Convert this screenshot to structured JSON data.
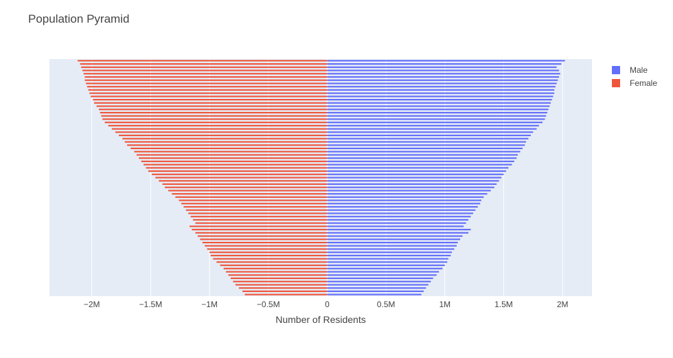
{
  "chart_data": {
    "type": "bar",
    "orientation": "horizontal",
    "barmode": "overlay",
    "title": "Population Pyramid",
    "xlabel": "Number of Residents",
    "ylabel": "",
    "xlim": [
      -2360000,
      2250000
    ],
    "x_ticks": [
      -2000000,
      -1500000,
      -1000000,
      -500000,
      0,
      500000,
      1000000,
      1500000,
      2000000
    ],
    "x_tick_labels": [
      "−2M",
      "−1.5M",
      "−1M",
      "−0.5M",
      "0",
      "0.5M",
      "1M",
      "1.5M",
      "2M"
    ],
    "y_tick_labels_visible": false,
    "grid": true,
    "legend_position": "top-right",
    "series": [
      {
        "name": "Male",
        "color": "#636efa",
        "values": [
          800000,
          820000,
          840000,
          860000,
          880000,
          900000,
          930000,
          950000,
          980000,
          1000000,
          1020000,
          1030000,
          1050000,
          1060000,
          1080000,
          1100000,
          1110000,
          1130000,
          1150000,
          1200000,
          1220000,
          1160000,
          1180000,
          1200000,
          1220000,
          1240000,
          1260000,
          1280000,
          1300000,
          1310000,
          1330000,
          1360000,
          1390000,
          1420000,
          1440000,
          1460000,
          1480000,
          1500000,
          1520000,
          1540000,
          1570000,
          1590000,
          1610000,
          1620000,
          1640000,
          1660000,
          1680000,
          1690000,
          1710000,
          1730000,
          1750000,
          1780000,
          1800000,
          1830000,
          1850000,
          1860000,
          1870000,
          1880000,
          1890000,
          1900000,
          1910000,
          1920000,
          1930000,
          1930000,
          1940000,
          1950000,
          1960000,
          1970000,
          1980000,
          1970000,
          1950000,
          1990000,
          2020000
        ]
      },
      {
        "name": "Female",
        "color": "#ef553b",
        "values": [
          -700000,
          -720000,
          -750000,
          -780000,
          -800000,
          -820000,
          -840000,
          -860000,
          -880000,
          -910000,
          -940000,
          -970000,
          -990000,
          -1000000,
          -1020000,
          -1040000,
          -1060000,
          -1080000,
          -1100000,
          -1120000,
          -1150000,
          -1170000,
          -1120000,
          -1140000,
          -1160000,
          -1180000,
          -1200000,
          -1220000,
          -1240000,
          -1260000,
          -1290000,
          -1320000,
          -1350000,
          -1380000,
          -1400000,
          -1430000,
          -1460000,
          -1490000,
          -1520000,
          -1540000,
          -1560000,
          -1580000,
          -1600000,
          -1620000,
          -1640000,
          -1670000,
          -1700000,
          -1720000,
          -1740000,
          -1770000,
          -1800000,
          -1830000,
          -1860000,
          -1890000,
          -1910000,
          -1920000,
          -1930000,
          -1940000,
          -1960000,
          -1980000,
          -1990000,
          -2010000,
          -2020000,
          -2030000,
          -2040000,
          -2050000,
          -2060000,
          -2060000,
          -2070000,
          -2080000,
          -2090000,
          -2100000,
          -2120000
        ]
      }
    ]
  }
}
